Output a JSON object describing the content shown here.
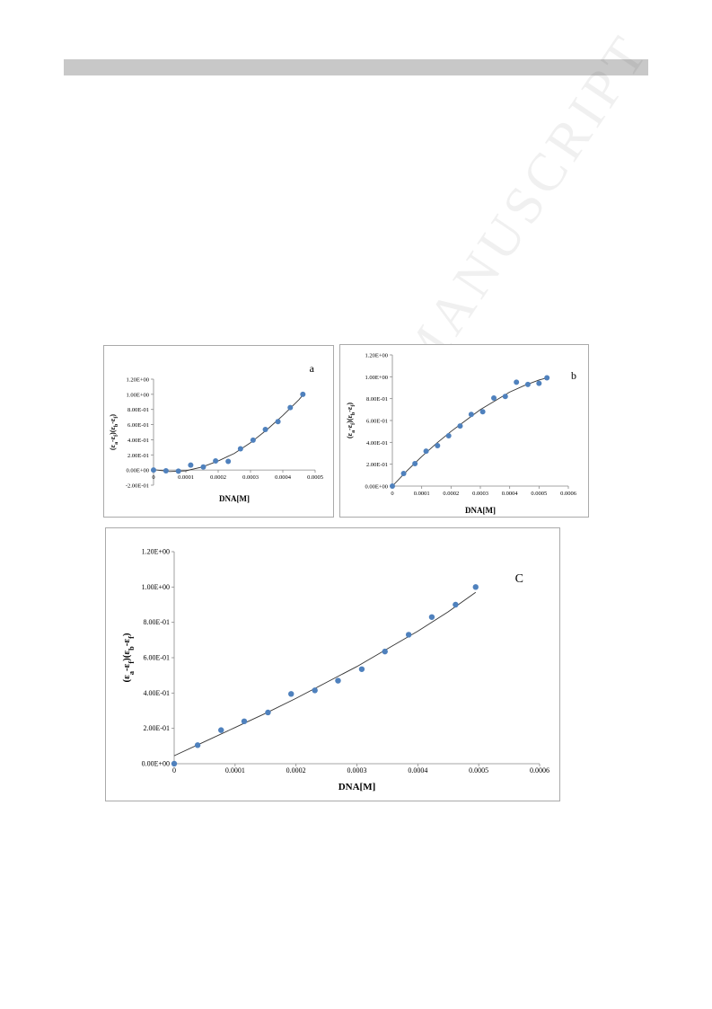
{
  "watermark": "MANUSCRIPT",
  "chart_data": [
    {
      "panel": "a",
      "type": "scatter",
      "annotation": "a",
      "xlabel": "DNA[M]",
      "ylabel": "(ε_a-ε_f)(ε_b-ε_f)",
      "xlim": [
        0,
        0.0005
      ],
      "ylim": [
        -0.2,
        1.2
      ],
      "x_ticks": [
        0,
        0.0001,
        0.0002,
        0.0003,
        0.0004,
        0.0005
      ],
      "x_tick_labels": [
        "0",
        "0.0001",
        "0.0002",
        "0.0003",
        "0.0004",
        "0.0005"
      ],
      "y_ticks": [
        -0.2,
        0,
        0.2,
        0.4,
        0.6,
        0.8,
        1.0,
        1.2
      ],
      "y_tick_labels": [
        "-2.00E-01",
        "0.00E+00",
        "2.00E-01",
        "4.00E-01",
        "6.00E-01",
        "8.00E-01",
        "1.00E+00",
        "1.20E+00"
      ],
      "points": [
        [
          0,
          0
        ],
        [
          3.85e-05,
          -0.01
        ],
        [
          7.7e-05,
          -0.015
        ],
        [
          0.000115,
          0.065
        ],
        [
          0.000154,
          0.04
        ],
        [
          0.000192,
          0.12
        ],
        [
          0.000231,
          0.115
        ],
        [
          0.000269,
          0.28
        ],
        [
          0.000308,
          0.395
        ],
        [
          0.000346,
          0.535
        ],
        [
          0.000385,
          0.64
        ],
        [
          0.000423,
          0.825
        ],
        [
          0.000462,
          1.0
        ]
      ],
      "fit": [
        [
          0,
          0.005
        ],
        [
          5e-05,
          -0.02
        ],
        [
          0.0001,
          -0.01
        ],
        [
          0.00015,
          0.04
        ],
        [
          0.0002,
          0.12
        ],
        [
          0.00025,
          0.22
        ],
        [
          0.0003,
          0.36
        ],
        [
          0.00035,
          0.53
        ],
        [
          0.0004,
          0.72
        ],
        [
          0.00045,
          0.93
        ],
        [
          0.000462,
          0.99
        ]
      ]
    },
    {
      "panel": "b",
      "type": "scatter",
      "annotation": "b",
      "xlabel": "DNA[M]",
      "ylabel": "(ε_a-ε_f)(ε_b-ε_f)",
      "xlim": [
        0,
        0.0006
      ],
      "ylim": [
        0,
        1.2
      ],
      "x_ticks": [
        0,
        0.0001,
        0.0002,
        0.0003,
        0.0004,
        0.0005,
        0.0006
      ],
      "x_tick_labels": [
        "0",
        "0.0001",
        "0.0002",
        "0.0003",
        "0.0004",
        "0.0005",
        "0.0006"
      ],
      "y_ticks": [
        0,
        0.2,
        0.4,
        0.6,
        0.8,
        1.0,
        1.2
      ],
      "y_tick_labels": [
        "0.00E+00",
        "2.00E-01",
        "4.00E-01",
        "6.00E-01",
        "8.00E-01",
        "1.00E+00",
        "1.20E+00"
      ],
      "points": [
        [
          0,
          0
        ],
        [
          3.85e-05,
          0.115
        ],
        [
          7.7e-05,
          0.205
        ],
        [
          0.000115,
          0.32
        ],
        [
          0.000154,
          0.37
        ],
        [
          0.000192,
          0.46
        ],
        [
          0.000231,
          0.55
        ],
        [
          0.000269,
          0.655
        ],
        [
          0.000308,
          0.68
        ],
        [
          0.000346,
          0.805
        ],
        [
          0.000385,
          0.82
        ],
        [
          0.000423,
          0.95
        ],
        [
          0.000462,
          0.93
        ],
        [
          0.0005,
          0.94
        ],
        [
          0.000527,
          0.99
        ]
      ],
      "fit": [
        [
          0,
          0
        ],
        [
          5e-05,
          0.14
        ],
        [
          0.0001,
          0.27
        ],
        [
          0.00015,
          0.39
        ],
        [
          0.0002,
          0.5
        ],
        [
          0.00025,
          0.6
        ],
        [
          0.0003,
          0.7
        ],
        [
          0.00035,
          0.78
        ],
        [
          0.0004,
          0.86
        ],
        [
          0.00045,
          0.92
        ],
        [
          0.0005,
          0.97
        ],
        [
          0.000527,
          0.99
        ]
      ]
    },
    {
      "panel": "C",
      "type": "scatter",
      "annotation": "C",
      "xlabel": "DNA[M]",
      "ylabel": "(ε_a-ε_f)(ε_b-ε_f)",
      "xlim": [
        0,
        0.0006
      ],
      "ylim": [
        0,
        1.2
      ],
      "x_ticks": [
        0,
        0.0001,
        0.0002,
        0.0003,
        0.0004,
        0.0005,
        0.0006
      ],
      "x_tick_labels": [
        "0",
        "0.0001",
        "0.0002",
        "0.0003",
        "0.0004",
        "0.0005",
        "0.0006"
      ],
      "y_ticks": [
        0,
        0.2,
        0.4,
        0.6,
        0.8,
        1.0,
        1.2
      ],
      "y_tick_labels": [
        "0.00E+00",
        "2.00E-01",
        "4.00E-01",
        "6.00E-01",
        "8.00E-01",
        "1.00E+00",
        "1.20E+00"
      ],
      "points": [
        [
          0,
          0
        ],
        [
          3.85e-05,
          0.105
        ],
        [
          7.7e-05,
          0.19
        ],
        [
          0.000115,
          0.24
        ],
        [
          0.000154,
          0.29
        ],
        [
          0.000192,
          0.395
        ],
        [
          0.000231,
          0.415
        ],
        [
          0.000269,
          0.47
        ],
        [
          0.000308,
          0.535
        ],
        [
          0.000346,
          0.635
        ],
        [
          0.000385,
          0.73
        ],
        [
          0.000423,
          0.83
        ],
        [
          0.000462,
          0.9
        ],
        [
          0.000495,
          1.0
        ]
      ],
      "fit": [
        [
          0,
          0.045
        ],
        [
          5e-05,
          0.125
        ],
        [
          0.0001,
          0.205
        ],
        [
          0.00015,
          0.285
        ],
        [
          0.0002,
          0.37
        ],
        [
          0.00025,
          0.46
        ],
        [
          0.0003,
          0.55
        ],
        [
          0.00035,
          0.65
        ],
        [
          0.0004,
          0.75
        ],
        [
          0.00045,
          0.86
        ],
        [
          0.000495,
          0.97
        ]
      ]
    }
  ]
}
